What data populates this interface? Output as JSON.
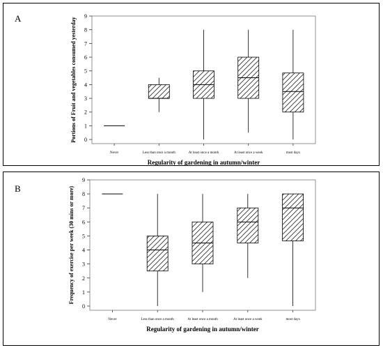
{
  "chart_data": [
    {
      "type": "boxplot",
      "panel_label": "A",
      "xlabel": "Regularity of gardening in autumn/winter",
      "ylabel": "Portions of Fruit and vegetables consumed yesterday",
      "ylim": [
        -0.3,
        9
      ],
      "yticks": [
        0,
        1,
        2,
        3,
        4,
        5,
        6,
        7,
        8,
        9
      ],
      "categories": [
        "Never",
        "Less than once a month",
        "At least once a month",
        "At least once a week",
        "most days"
      ],
      "boxes": [
        {
          "min": 1,
          "q1": 1,
          "median": 1,
          "q3": 1,
          "max": 1
        },
        {
          "min": 2,
          "q1": 3,
          "median": 3,
          "q3": 4,
          "max": 4.5
        },
        {
          "min": 0,
          "q1": 3,
          "median": 4,
          "q3": 5,
          "max": 8
        },
        {
          "min": 0.5,
          "q1": 3,
          "median": 4.5,
          "q3": 6,
          "max": 8
        },
        {
          "min": 0,
          "q1": 2,
          "median": 3.5,
          "q3": 4.85,
          "max": 8
        }
      ],
      "grid": false,
      "hatch": true
    },
    {
      "type": "boxplot",
      "panel_label": "B",
      "xlabel": "Regularity of gardening in autumn/winter",
      "ylabel": "Frequency of exercise per week (30 mins or more)",
      "ylim": [
        -0.3,
        9
      ],
      "yticks": [
        0,
        1,
        2,
        3,
        4,
        5,
        6,
        7,
        8,
        9
      ],
      "categories": [
        "Never",
        "Less than once a month",
        "At least once a month",
        "At least once a week",
        "most days"
      ],
      "boxes": [
        {
          "min": 8,
          "q1": 8,
          "median": 8,
          "q3": 8,
          "max": 8
        },
        {
          "min": 0,
          "q1": 2.5,
          "median": 4,
          "q3": 5,
          "max": 8
        },
        {
          "min": 1,
          "q1": 3,
          "median": 4.5,
          "q3": 6,
          "max": 8
        },
        {
          "min": 2,
          "q1": 4.5,
          "median": 6,
          "q3": 7,
          "max": 8
        },
        {
          "min": 0,
          "q1": 4.65,
          "median": 7,
          "q3": 8,
          "max": 8
        }
      ],
      "grid": false,
      "hatch": true
    }
  ]
}
